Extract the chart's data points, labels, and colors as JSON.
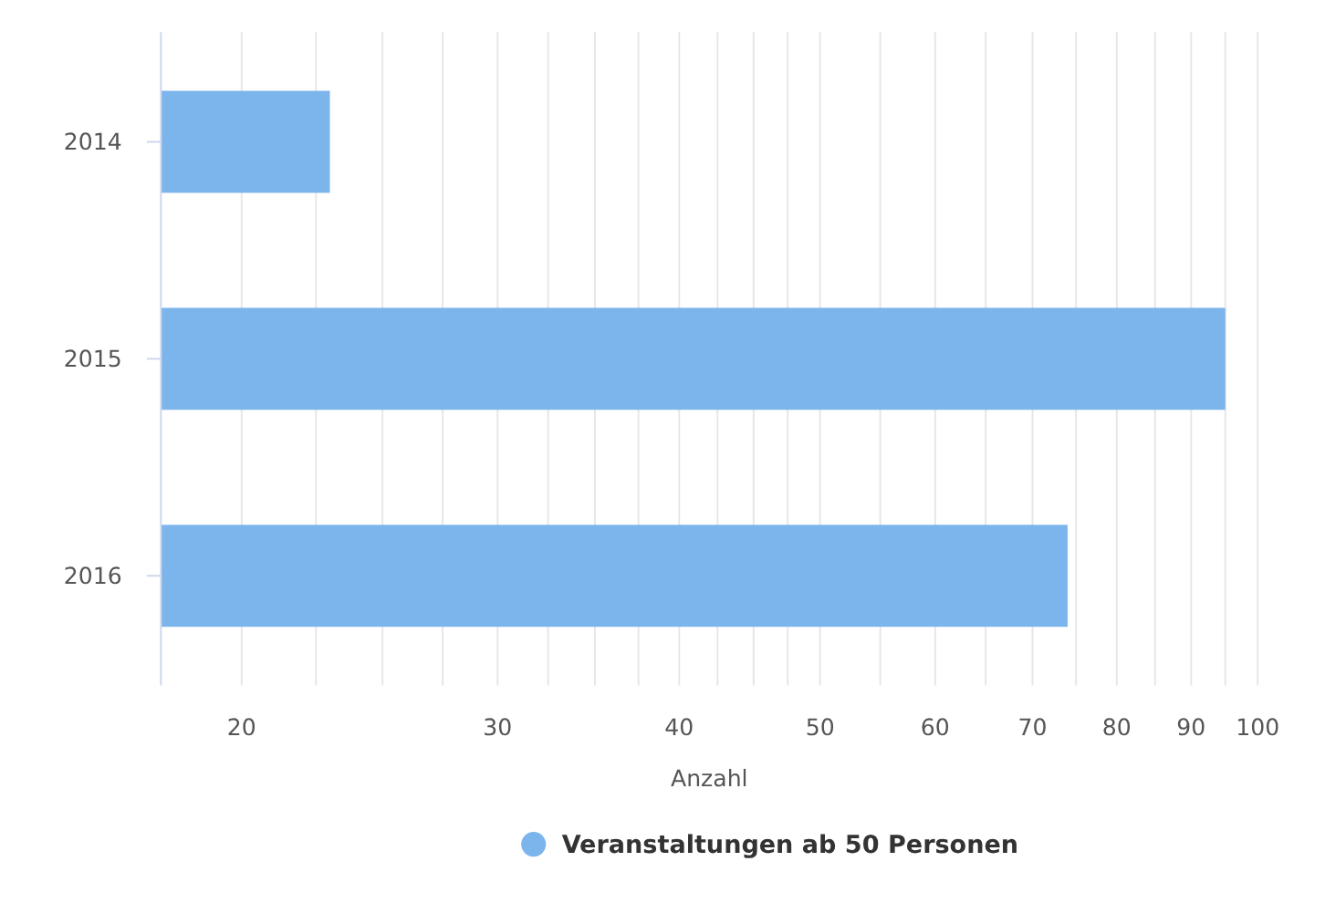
{
  "chart_data": {
    "type": "bar",
    "orientation": "horizontal",
    "categories": [
      "2014",
      "2015",
      "2016"
    ],
    "series": [
      {
        "name": "Veranstaltungen ab 50 Personen",
        "color": "#7cb5ec",
        "values": [
          23,
          95,
          74
        ]
      }
    ],
    "xlabel": "Anzahl",
    "log": "x",
    "xlim": [
      17.6,
      100
    ],
    "xticks": [
      20,
      {
        "value": 22.5,
        "label": null
      },
      {
        "value": 25,
        "label": null
      },
      {
        "value": 27.5,
        "label": null
      },
      30,
      {
        "value": 32.5,
        "label": null
      },
      {
        "value": 35,
        "label": null
      },
      {
        "value": 37.5,
        "label": null
      },
      40,
      {
        "value": 42.5,
        "label": null
      },
      {
        "value": 45,
        "label": null
      },
      {
        "value": 47.5,
        "label": null
      },
      50,
      {
        "value": 55,
        "label": null
      },
      60,
      {
        "value": 65,
        "label": null
      },
      70,
      {
        "value": 75,
        "label": null
      },
      80,
      {
        "value": 85,
        "label": null
      },
      90,
      {
        "value": 95,
        "label": null
      },
      100
    ],
    "grid": "x",
    "legend": "bottom"
  }
}
